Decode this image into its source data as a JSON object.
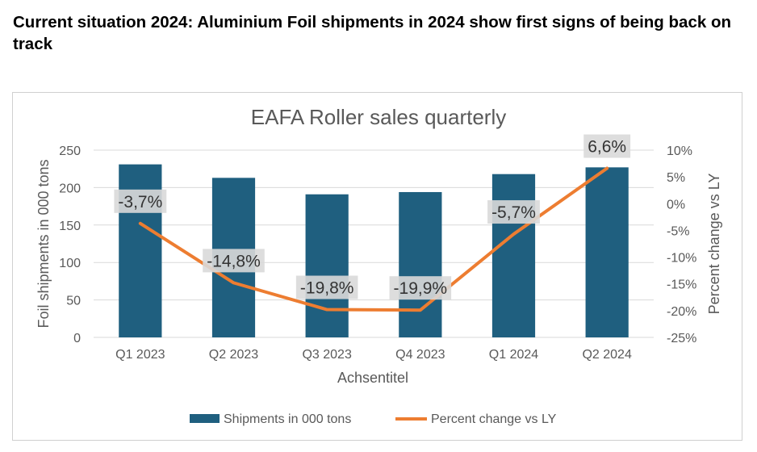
{
  "page": {
    "headline": "Current situation 2024: Aluminium Foil shipments in 2024 show first signs of being back on track"
  },
  "chart_data": {
    "type": "bar",
    "title": "EAFA Roller sales quarterly",
    "xlabel": "Achsentitel",
    "ylabel": "Foil shipments in 000 tons",
    "y2label": "Percent change vs LY",
    "categories": [
      "Q1 2023",
      "Q2 2023",
      "Q3 2023",
      "Q4 2023",
      "Q1 2024",
      "Q2 2024"
    ],
    "ylim": [
      0,
      250
    ],
    "yticks": [
      0,
      50,
      100,
      150,
      200,
      250
    ],
    "y2lim": [
      -25,
      10
    ],
    "y2ticks": [
      10,
      5,
      0,
      -5,
      -10,
      -15,
      -20,
      -25
    ],
    "y2tick_labels": [
      "10%",
      "5%",
      "0%",
      "-5%",
      "-10%",
      "-15%",
      "-20%",
      "-25%"
    ],
    "grid": true,
    "legend_position": "bottom",
    "series": [
      {
        "name": "Shipments in 000 tons",
        "type": "bar",
        "axis": "left",
        "color": "#1F5F7F",
        "values": [
          231,
          213,
          191,
          194,
          218,
          227
        ]
      },
      {
        "name": "Percent change vs LY",
        "type": "line",
        "axis": "right",
        "color": "#ED7D31",
        "values": [
          -3.7,
          -14.8,
          -19.8,
          -19.9,
          -5.7,
          6.6
        ],
        "labels": [
          "-3,7%",
          "-14,8%",
          "-19,8%",
          "-19,9%",
          "-5,7%",
          "6,6%"
        ]
      }
    ]
  }
}
